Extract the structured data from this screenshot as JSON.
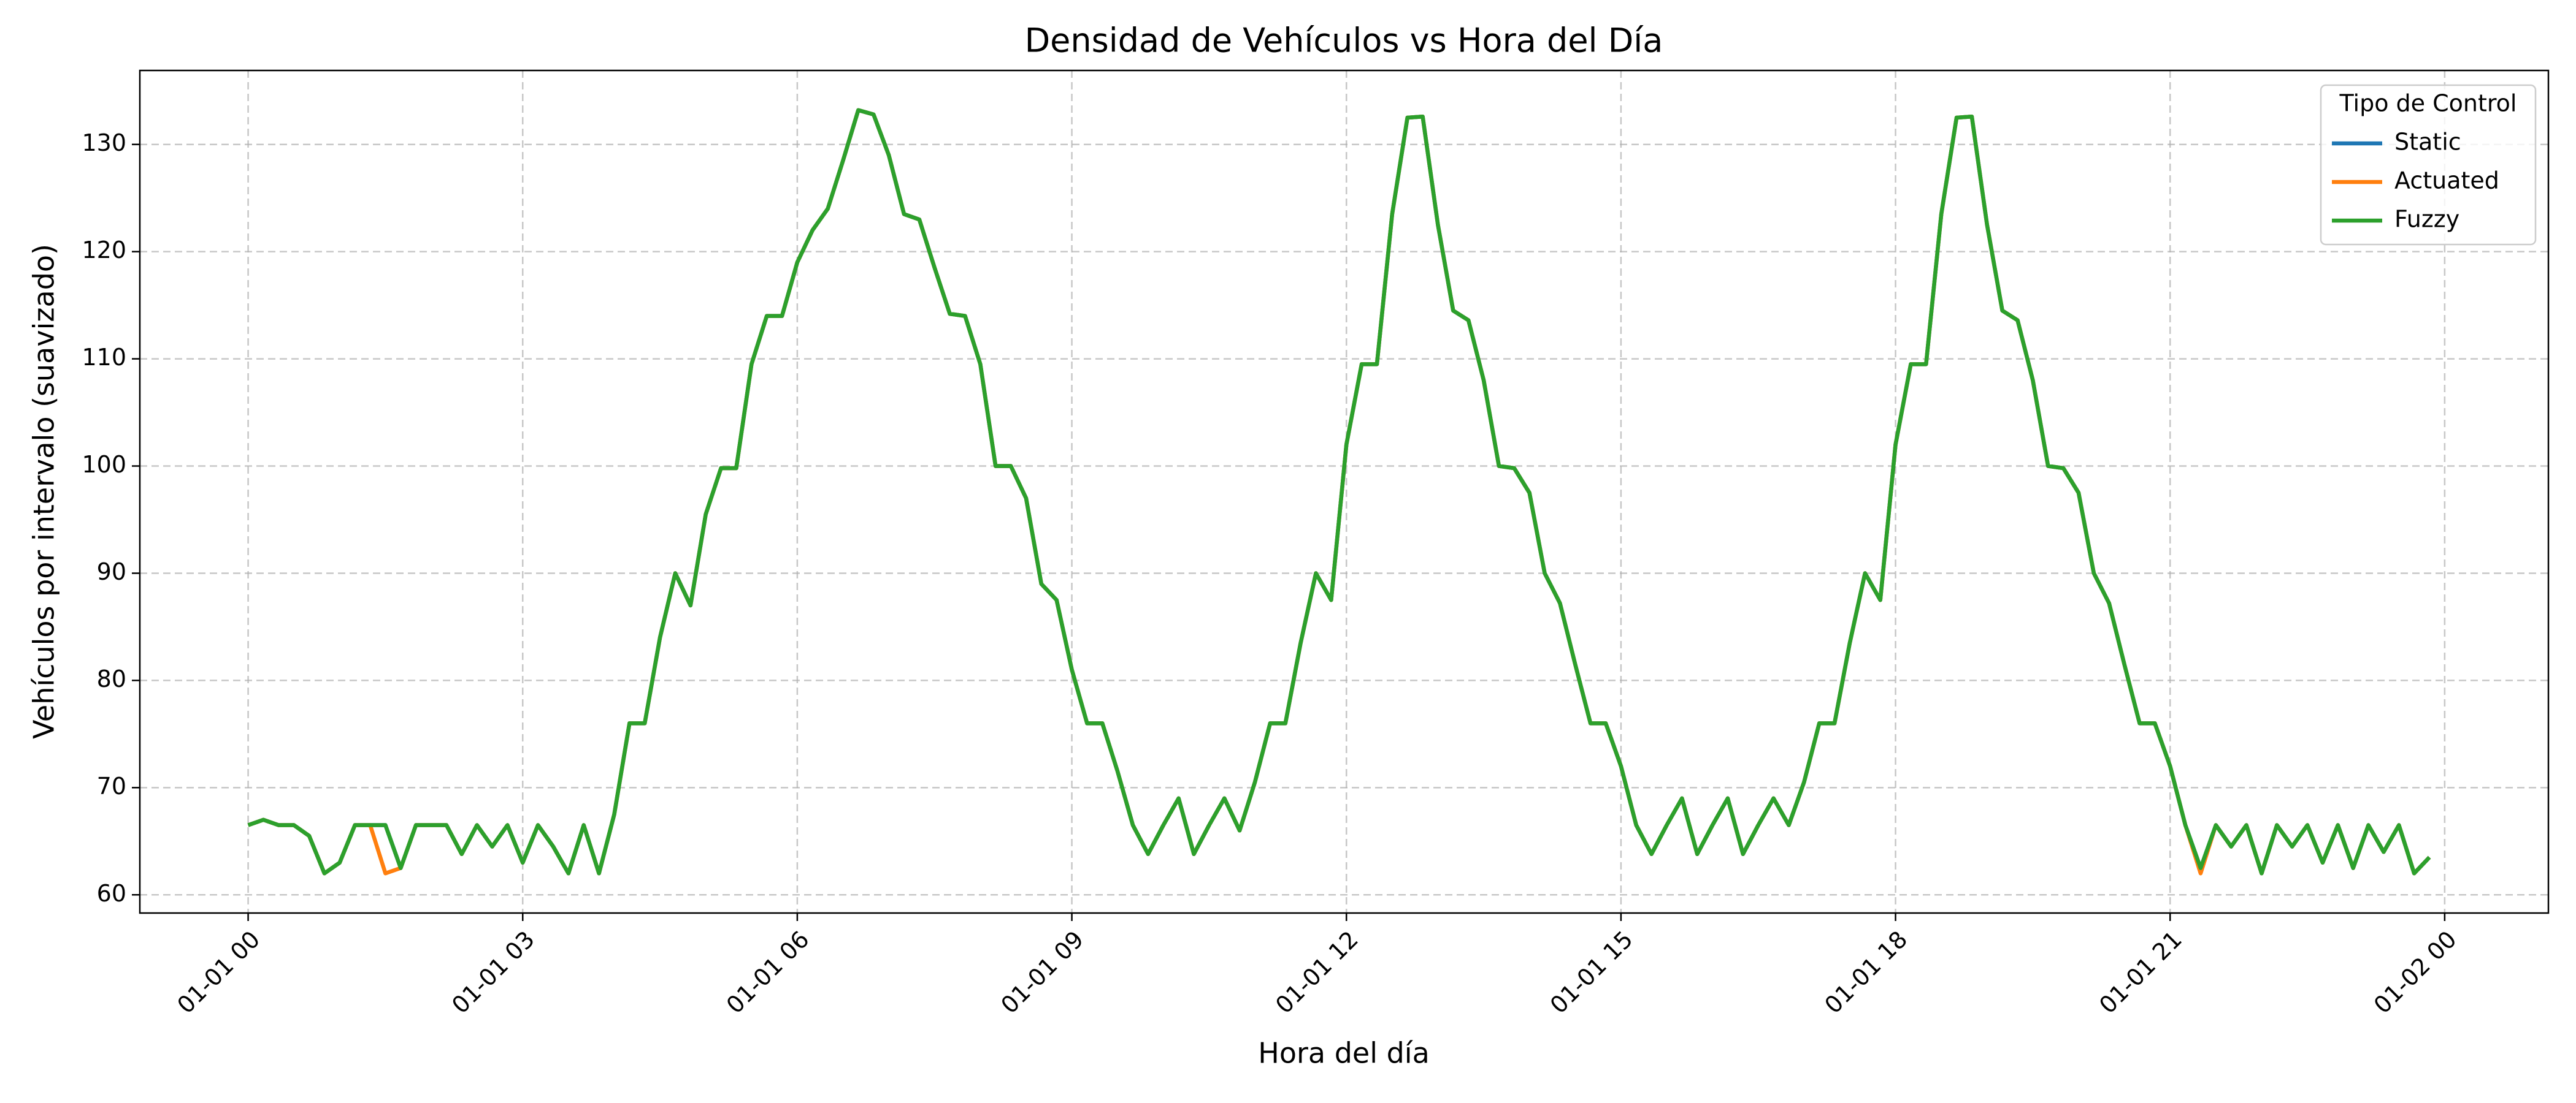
{
  "chart_data": {
    "type": "line",
    "title": "Densidad de Vehículos vs Hora del Día",
    "x_label": "Hora del día",
    "y_label": "Vehículos por intervalo (suavizado)",
    "legend_title": "Tipo de Control",
    "legend_loc": "upper right",
    "grid": true,
    "x": [
      0,
      10,
      20,
      30,
      40,
      50,
      60,
      70,
      80,
      90,
      100,
      110,
      120,
      130,
      140,
      150,
      160,
      170,
      180,
      190,
      200,
      210,
      220,
      230,
      240,
      250,
      260,
      270,
      280,
      290,
      300,
      310,
      320,
      330,
      340,
      350,
      360,
      370,
      380,
      390,
      400,
      410,
      420,
      430,
      440,
      450,
      460,
      470,
      480,
      490,
      500,
      510,
      520,
      530,
      540,
      550,
      560,
      570,
      580,
      590,
      600,
      610,
      620,
      630,
      640,
      650,
      660,
      670,
      680,
      690,
      700,
      710,
      720,
      730,
      740,
      750,
      760,
      770,
      780,
      790,
      800,
      810,
      820,
      830,
      840,
      850,
      860,
      870,
      880,
      890,
      900,
      910,
      920,
      930,
      940,
      950,
      960,
      970,
      980,
      990,
      1000,
      1010,
      1020,
      1030,
      1040,
      1050,
      1060,
      1070,
      1080,
      1090,
      1100,
      1110,
      1120,
      1130,
      1140,
      1150,
      1160,
      1170,
      1180,
      1190,
      1200,
      1210,
      1220,
      1230,
      1240,
      1250,
      1260,
      1270,
      1280,
      1290,
      1300,
      1310,
      1320,
      1330,
      1340,
      1350,
      1360,
      1370,
      1380,
      1390,
      1400,
      1410,
      1420,
      1430
    ],
    "series": [
      {
        "name": "Static",
        "color": "#1f77b4",
        "values": [
          66.5,
          67,
          66.5,
          66.5,
          65.5,
          62,
          63,
          66.5,
          66.5,
          66.5,
          62.5,
          66.5,
          66.5,
          66.5,
          63.8,
          66.5,
          64.5,
          66.5,
          63,
          66.5,
          64.5,
          62,
          66.5,
          62,
          67.5,
          76,
          76,
          84,
          90,
          87,
          95.5,
          99.8,
          99.8,
          109.5,
          114,
          114,
          119,
          122,
          124,
          128.5,
          133.2,
          132.8,
          129,
          123.5,
          123,
          118.5,
          114.2,
          114,
          109.5,
          100,
          100,
          97,
          89,
          87.5,
          81,
          76,
          76,
          71.5,
          66.5,
          63.8,
          66.5,
          69,
          63.8,
          66.5,
          69,
          66,
          70.5,
          76,
          76,
          83.5,
          90,
          87.5,
          102,
          109.5,
          109.5,
          123.5,
          132.5,
          132.6,
          122.5,
          114.5,
          113.6,
          108,
          100,
          99.8,
          97.5,
          90,
          87.2,
          81.5,
          76,
          76,
          72,
          66.5,
          63.8,
          66.5,
          69,
          63.8,
          66.5,
          69,
          63.8,
          66.5,
          69,
          66.5,
          70.5,
          76,
          76,
          83.5,
          90,
          87.5,
          102,
          109.5,
          109.5,
          123.5,
          132.5,
          132.6,
          122.5,
          114.5,
          113.6,
          108,
          100,
          99.8,
          97.5,
          90,
          87.2,
          81.5,
          76,
          76,
          72,
          66.5,
          62.5,
          66.5,
          64.5,
          66.5,
          62,
          66.5,
          64.5,
          66.5,
          63,
          66.5,
          62.5,
          66.5,
          64,
          66.5,
          62,
          63.5
        ]
      },
      {
        "name": "Actuated",
        "color": "#ff7f0e",
        "values": [
          66.5,
          67,
          66.5,
          66.5,
          65.5,
          62,
          63,
          66.5,
          66.5,
          62,
          62.5,
          66.5,
          66.5,
          66.5,
          63.8,
          66.5,
          64.5,
          66.5,
          63,
          66.5,
          64.5,
          62,
          66.5,
          62,
          67.5,
          76,
          76,
          84,
          90,
          87,
          95.5,
          99.8,
          99.8,
          109.5,
          114,
          114,
          119,
          122,
          124,
          128.5,
          133.2,
          132.8,
          129,
          123.5,
          123,
          118.5,
          114.2,
          114,
          109.5,
          100,
          100,
          97,
          89,
          87.5,
          81,
          76,
          76,
          71.5,
          66.5,
          63.8,
          66.5,
          69,
          63.8,
          66.5,
          69,
          66,
          70.5,
          76,
          76,
          83.5,
          90,
          87.5,
          102,
          109.5,
          109.5,
          123.5,
          132.5,
          132.6,
          122.5,
          114.5,
          113.6,
          108,
          100,
          99.8,
          97.5,
          90,
          87.2,
          81.5,
          76,
          76,
          72,
          66.5,
          63.8,
          66.5,
          69,
          63.8,
          66.5,
          69,
          63.8,
          66.5,
          69,
          66.5,
          70.5,
          76,
          76,
          83.5,
          90,
          87.5,
          102,
          109.5,
          109.5,
          123.5,
          132.5,
          132.6,
          122.5,
          114.5,
          113.6,
          108,
          100,
          99.8,
          97.5,
          90,
          87.2,
          81.5,
          76,
          76,
          72,
          66.5,
          62,
          66.5,
          64.5,
          66.5,
          62,
          66.5,
          64.5,
          66.5,
          63,
          66.5,
          62.5,
          66.5,
          64,
          66.5,
          62,
          63.5
        ]
      },
      {
        "name": "Fuzzy",
        "color": "#2ca02c",
        "values": [
          66.5,
          67,
          66.5,
          66.5,
          65.5,
          62,
          63,
          66.5,
          66.5,
          66.5,
          62.5,
          66.5,
          66.5,
          66.5,
          63.8,
          66.5,
          64.5,
          66.5,
          63,
          66.5,
          64.5,
          62,
          66.5,
          62,
          67.5,
          76,
          76,
          84,
          90,
          87,
          95.5,
          99.8,
          99.8,
          109.5,
          114,
          114,
          119,
          122,
          124,
          128.5,
          133.2,
          132.8,
          129,
          123.5,
          123,
          118.5,
          114.2,
          114,
          109.5,
          100,
          100,
          97,
          89,
          87.5,
          81,
          76,
          76,
          71.5,
          66.5,
          63.8,
          66.5,
          69,
          63.8,
          66.5,
          69,
          66,
          70.5,
          76,
          76,
          83.5,
          90,
          87.5,
          102,
          109.5,
          109.5,
          123.5,
          132.5,
          132.6,
          122.5,
          114.5,
          113.6,
          108,
          100,
          99.8,
          97.5,
          90,
          87.2,
          81.5,
          76,
          76,
          72,
          66.5,
          63.8,
          66.5,
          69,
          63.8,
          66.5,
          69,
          63.8,
          66.5,
          69,
          66.5,
          70.5,
          76,
          76,
          83.5,
          90,
          87.5,
          102,
          109.5,
          109.5,
          123.5,
          132.5,
          132.6,
          122.5,
          114.5,
          113.6,
          108,
          100,
          99.8,
          97.5,
          90,
          87.2,
          81.5,
          76,
          76,
          72,
          66.5,
          62.5,
          66.5,
          64.5,
          66.5,
          62,
          66.5,
          64.5,
          66.5,
          63,
          66.5,
          62.5,
          66.5,
          64,
          66.5,
          62,
          63.5
        ]
      }
    ],
    "xlim": [
      -71,
      1508
    ],
    "xticks": [
      {
        "value": 0,
        "label": "01-01 00"
      },
      {
        "value": 180,
        "label": "01-01 03"
      },
      {
        "value": 360,
        "label": "01-01 06"
      },
      {
        "value": 540,
        "label": "01-01 09"
      },
      {
        "value": 720,
        "label": "01-01 12"
      },
      {
        "value": 900,
        "label": "01-01 15"
      },
      {
        "value": 1080,
        "label": "01-01 18"
      },
      {
        "value": 1260,
        "label": "01-01 21"
      },
      {
        "value": 1440,
        "label": "01-02 00"
      }
    ],
    "ylim": [
      58.3,
      136.9
    ],
    "yticks": [
      60,
      70,
      80,
      90,
      100,
      110,
      120,
      130
    ]
  }
}
